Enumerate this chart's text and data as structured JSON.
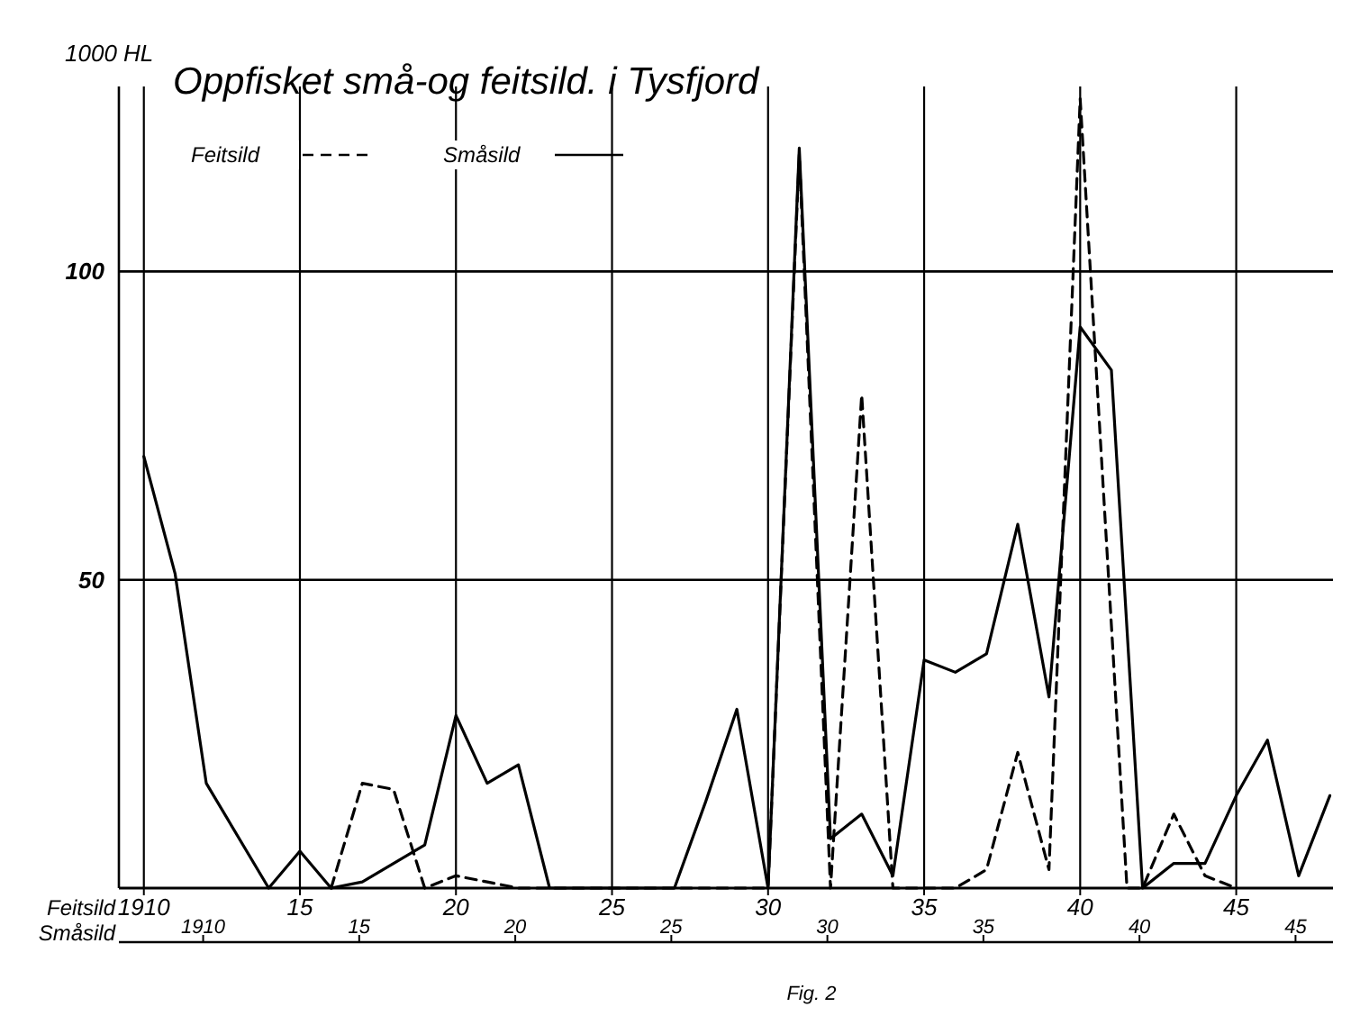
{
  "chart_data": {
    "type": "line",
    "title": "Oppfisket små-og feitsild. i Tysfjord",
    "ylabel": "1000 HL",
    "xlabel": "Feitsild",
    "x2label": "Småsild",
    "annotations": [
      "Fig. 2"
    ],
    "xlim": [
      1909.2,
      1948.1
    ],
    "xticks": [
      {
        "value": 1910,
        "label": "1910"
      },
      {
        "value": 1915,
        "label": "15"
      },
      {
        "value": 1920,
        "label": "20"
      },
      {
        "value": 1925,
        "label": "25"
      },
      {
        "value": 1930,
        "label": "30"
      },
      {
        "value": 1935,
        "label": "35"
      },
      {
        "value": 1940,
        "label": "40"
      },
      {
        "value": 1945,
        "label": "45"
      }
    ],
    "x2lim": [
      1907.3,
      1946.2
    ],
    "x2ticks": [
      {
        "value": 1910,
        "label": "1910"
      },
      {
        "value": 1915,
        "label": "15"
      },
      {
        "value": 1920,
        "label": "20"
      },
      {
        "value": 1925,
        "label": "25"
      },
      {
        "value": 1930,
        "label": "30"
      },
      {
        "value": 1935,
        "label": "35"
      },
      {
        "value": 1940,
        "label": "40"
      },
      {
        "value": 1945,
        "label": "45"
      }
    ],
    "ylim": [
      0,
      130
    ],
    "yticks": [
      50,
      100
    ],
    "grid": true,
    "legend": "top left",
    "series": [
      {
        "name": "Feitsild",
        "color": "#000000",
        "line_style": "dashed",
        "x": [
          1916,
          1917,
          1918,
          1919,
          1920,
          1921,
          1922,
          1930,
          1931,
          1932,
          1933,
          1934,
          1936,
          1937,
          1938,
          1939,
          1940,
          1941.5,
          1942,
          1943,
          1944,
          1945
        ],
        "values": [
          0,
          17,
          16,
          0,
          2,
          1,
          0,
          0,
          119,
          0,
          80,
          0,
          0,
          3,
          22,
          3,
          128,
          0,
          0,
          12,
          2,
          0
        ]
      },
      {
        "name": "Småsild",
        "color": "#000000",
        "line_style": "solid",
        "x": [
          1910,
          1911,
          1912,
          1914,
          1915,
          1916,
          1917,
          1918,
          1919,
          1920,
          1921,
          1922,
          1923,
          1927,
          1928,
          1929,
          1930,
          1931,
          1932,
          1933,
          1934,
          1935,
          1936,
          1937,
          1938,
          1939,
          1940,
          1941,
          1942,
          1943,
          1944,
          1945,
          1946,
          1947,
          1948
        ],
        "values": [
          70,
          51,
          17,
          0,
          6,
          0,
          1,
          4,
          7,
          28,
          17,
          20,
          0,
          0,
          14,
          29,
          0,
          120,
          8,
          12,
          2,
          37,
          35,
          38,
          59,
          31,
          91,
          84,
          0,
          4,
          4,
          15,
          24,
          2,
          15
        ]
      }
    ]
  }
}
